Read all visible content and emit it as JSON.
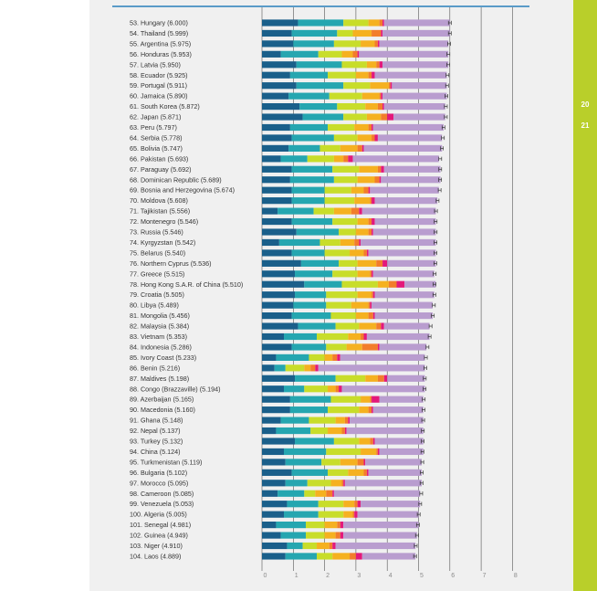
{
  "page_numbers": [
    "20",
    "21"
  ],
  "colors": {
    "page_bg": "#f0f0f0",
    "sidebar": "#b9cf2a",
    "top_rule": "#5a9bc8",
    "grid": "#555555",
    "error_bar": "#333333"
  },
  "chart_data": {
    "type": "bar",
    "orientation": "horizontal",
    "stacked": true,
    "xlim": [
      0,
      8
    ],
    "xticks": [
      "0",
      "1",
      "2",
      "3",
      "4",
      "5",
      "6",
      "7",
      "8"
    ],
    "grid": true,
    "error_bars": true,
    "segment_colors": [
      "#1a5f8a",
      "#25a6b0",
      "#c8dd2a",
      "#f5b120",
      "#f27d2b",
      "#e3197a",
      "#b99dcf"
    ],
    "categories": [
      "53. Hungary (6.000)",
      "54. Thailand (5.999)",
      "55. Argentina (5.975)",
      "56. Honduras (5.953)",
      "57. Latvia (5.950)",
      "58. Ecuador (5.925)",
      "59. Portugal (5.911)",
      "60. Jamaica (5.890)",
      "61. South Korea (5.872)",
      "62. Japan (5.871)",
      "63. Peru (5.797)",
      "64. Serbia (5.778)",
      "65. Bolivia (5.747)",
      "66. Pakistan (5.693)",
      "67. Paraguay (5.692)",
      "68. Dominican Republic (5.689)",
      "69. Bosnia and Herzegovina (5.674)",
      "70. Moldova (5.608)",
      "71. Tajikistan (5.556)",
      "72. Montenegro (5.546)",
      "73. Russia (5.546)",
      "74. Kyrgyzstan (5.542)",
      "75. Belarus (5.540)",
      "76. Northern Cyprus (5.536)",
      "77. Greece (5.515)",
      "78. Hong Kong S.A.R. of China (5.510)",
      "79. Croatia (5.505)",
      "80. Libya (5.489)",
      "81. Mongolia (5.456)",
      "82. Malaysia (5.384)",
      "83. Vietnam (5.353)",
      "84. Indonesia (5.286)",
      "85. Ivory Coast (5.233)",
      "86. Benin (5.216)",
      "87. Maldives (5.198)",
      "88. Congo (Brazzaville) (5.194)",
      "89. Azerbaijan (5.165)",
      "90. Macedonia (5.160)",
      "91. Ghana (5.148)",
      "92. Nepal (5.137)",
      "93. Turkey (5.132)",
      "94. China (5.124)",
      "95. Turkmenistan (5.119)",
      "96. Bulgaria (5.102)",
      "97. Morocco (5.095)",
      "98. Cameroon (5.085)",
      "99. Venezuela (5.053)",
      "100. Algeria (5.005)",
      "101. Senegal (4.981)",
      "102. Guinea (4.949)",
      "103. Niger (4.910)",
      "104. Laos (4.889)"
    ],
    "totals": [
      6.0,
      5.999,
      5.975,
      5.953,
      5.95,
      5.925,
      5.911,
      5.89,
      5.872,
      5.871,
      5.797,
      5.778,
      5.747,
      5.693,
      5.692,
      5.689,
      5.674,
      5.608,
      5.556,
      5.546,
      5.546,
      5.542,
      5.54,
      5.536,
      5.515,
      5.51,
      5.505,
      5.489,
      5.456,
      5.384,
      5.353,
      5.286,
      5.233,
      5.216,
      5.198,
      5.194,
      5.165,
      5.16,
      5.148,
      5.137,
      5.132,
      5.124,
      5.119,
      5.102,
      5.095,
      5.085,
      5.053,
      5.005,
      4.981,
      4.949,
      4.91,
      4.889
    ],
    "segments": [
      [
        1.15,
        1.45,
        0.8,
        0.35,
        0.1,
        0.05,
        2.1
      ],
      [
        0.95,
        1.45,
        0.5,
        0.6,
        0.3,
        0.05,
        2.15
      ],
      [
        1.0,
        1.3,
        0.85,
        0.45,
        0.1,
        0.05,
        2.2
      ],
      [
        0.6,
        1.2,
        0.75,
        0.35,
        0.15,
        0.05,
        2.85
      ],
      [
        1.1,
        1.45,
        0.8,
        0.3,
        0.1,
        0.1,
        2.1
      ],
      [
        0.9,
        1.2,
        0.9,
        0.4,
        0.1,
        0.1,
        2.3
      ],
      [
        1.1,
        1.5,
        0.85,
        0.6,
        0.05,
        0.05,
        1.75
      ],
      [
        0.85,
        1.3,
        1.05,
        0.55,
        0.05,
        0.05,
        2.05
      ],
      [
        1.2,
        1.2,
        0.9,
        0.4,
        0.15,
        0.05,
        1.95
      ],
      [
        1.3,
        1.3,
        0.75,
        0.45,
        0.2,
        0.2,
        1.65
      ],
      [
        0.9,
        1.2,
        0.85,
        0.45,
        0.1,
        0.05,
        2.25
      ],
      [
        0.95,
        1.35,
        0.75,
        0.45,
        0.1,
        0.1,
        2.05
      ],
      [
        0.85,
        1.0,
        0.65,
        0.55,
        0.15,
        0.05,
        2.5
      ],
      [
        0.6,
        0.85,
        0.85,
        0.3,
        0.15,
        0.15,
        2.75
      ],
      [
        0.95,
        1.3,
        0.85,
        0.6,
        0.1,
        0.1,
        1.8
      ],
      [
        0.9,
        1.4,
        0.75,
        0.55,
        0.15,
        0.05,
        1.9
      ],
      [
        0.95,
        1.05,
        0.85,
        0.4,
        0.15,
        0.05,
        2.2
      ],
      [
        0.95,
        1.05,
        0.95,
        0.5,
        0.05,
        0.1,
        2.0
      ],
      [
        0.5,
        1.15,
        0.65,
        0.55,
        0.25,
        0.1,
        2.35
      ],
      [
        0.95,
        1.3,
        0.8,
        0.35,
        0.1,
        0.1,
        1.95
      ],
      [
        1.1,
        1.35,
        0.55,
        0.4,
        0.1,
        0.05,
        2.0
      ],
      [
        0.55,
        1.3,
        0.65,
        0.45,
        0.15,
        0.05,
        2.4
      ],
      [
        0.95,
        1.05,
        0.8,
        0.45,
        0.1,
        0.05,
        2.15
      ],
      [
        1.25,
        1.2,
        0.6,
        0.6,
        0.2,
        0.15,
        1.55
      ],
      [
        1.05,
        1.2,
        0.8,
        0.4,
        0.05,
        0.05,
        1.95
      ],
      [
        1.35,
        1.2,
        1.15,
        0.35,
        0.25,
        0.25,
        1.0
      ],
      [
        1.05,
        1.0,
        1.0,
        0.45,
        0.05,
        0.05,
        1.9
      ],
      [
        1.0,
        1.05,
        0.8,
        0.55,
        0.05,
        0.05,
        1.95
      ],
      [
        0.95,
        1.25,
        0.8,
        0.4,
        0.15,
        0.05,
        1.85
      ],
      [
        1.15,
        1.2,
        0.75,
        0.55,
        0.15,
        0.1,
        1.45
      ],
      [
        0.7,
        1.05,
        1.0,
        0.4,
        0.1,
        0.1,
        2.0
      ],
      [
        0.95,
        1.1,
        0.65,
        0.5,
        0.5,
        0.05,
        1.5
      ],
      [
        0.45,
        1.05,
        0.5,
        0.25,
        0.15,
        0.1,
        2.7
      ],
      [
        0.4,
        0.35,
        0.6,
        0.2,
        0.15,
        0.1,
        3.4
      ],
      [
        1.05,
        1.3,
        0.95,
        0.4,
        0.2,
        0.1,
        1.2
      ],
      [
        0.7,
        0.65,
        0.75,
        0.25,
        0.1,
        0.1,
        2.65
      ],
      [
        0.9,
        1.3,
        0.95,
        0.3,
        0.05,
        0.25,
        1.4
      ],
      [
        0.9,
        1.2,
        1.0,
        0.3,
        0.1,
        0.05,
        1.6
      ],
      [
        0.6,
        0.9,
        0.85,
        0.3,
        0.1,
        0.05,
        2.35
      ],
      [
        0.45,
        1.1,
        0.55,
        0.45,
        0.1,
        0.05,
        2.45
      ],
      [
        1.05,
        1.25,
        0.8,
        0.35,
        0.1,
        0.05,
        1.55
      ],
      [
        0.7,
        1.35,
        1.1,
        0.5,
        0.05,
        0.05,
        1.4
      ],
      [
        0.75,
        1.15,
        0.6,
        0.55,
        0.2,
        0.05,
        1.8
      ],
      [
        0.95,
        1.15,
        0.65,
        0.5,
        0.1,
        0.05,
        1.7
      ],
      [
        0.75,
        0.7,
        0.75,
        0.35,
        0.05,
        0.05,
        2.45
      ],
      [
        0.5,
        0.85,
        0.35,
        0.35,
        0.2,
        0.05,
        2.75
      ],
      [
        0.8,
        1.0,
        0.8,
        0.35,
        0.1,
        0.1,
        1.9
      ],
      [
        0.7,
        1.1,
        0.8,
        0.3,
        0.05,
        0.1,
        1.95
      ],
      [
        0.45,
        0.95,
        0.6,
        0.4,
        0.1,
        0.1,
        2.4
      ],
      [
        0.6,
        0.8,
        0.6,
        0.35,
        0.15,
        0.1,
        2.35
      ],
      [
        0.8,
        0.5,
        0.45,
        0.4,
        0.1,
        0.1,
        2.55
      ],
      [
        0.75,
        1.0,
        0.5,
        0.55,
        0.2,
        0.2,
        1.7
      ]
    ]
  }
}
